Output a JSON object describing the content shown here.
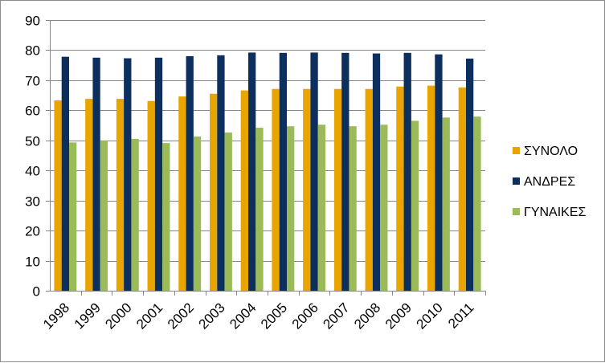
{
  "chart_data": {
    "type": "bar",
    "title": "",
    "xlabel": "",
    "ylabel": "",
    "ylim": [
      0,
      90
    ],
    "ytick_step": 10,
    "grid": true,
    "legend_position": "right",
    "categories": [
      "1998",
      "1999",
      "2000",
      "2001",
      "2002",
      "2003",
      "2004",
      "2005",
      "2006",
      "2007",
      "2008",
      "2009",
      "2010",
      "2011"
    ],
    "series": [
      {
        "name": "ΣΥΝΟΛΟ",
        "color": "#E8A500",
        "values": [
          63.3,
          63.8,
          63.8,
          63.1,
          64.6,
          65.5,
          66.6,
          67.1,
          67.1,
          67.1,
          67.1,
          67.9,
          68.2,
          67.6
        ]
      },
      {
        "name": "ΑΝΔΡΕΣ",
        "color": "#0D2F5E",
        "values": [
          77.8,
          77.5,
          77.3,
          77.5,
          78.0,
          78.3,
          79.2,
          79.1,
          79.2,
          79.1,
          78.9,
          79.1,
          78.6,
          77.2
        ]
      },
      {
        "name": "ΓΥΝΑΙΚΕΣ",
        "color": "#9BBB59",
        "values": [
          49.3,
          50.0,
          50.5,
          49.1,
          51.3,
          52.6,
          54.2,
          54.7,
          55.2,
          54.7,
          55.2,
          56.5,
          57.6,
          57.9
        ]
      }
    ]
  }
}
